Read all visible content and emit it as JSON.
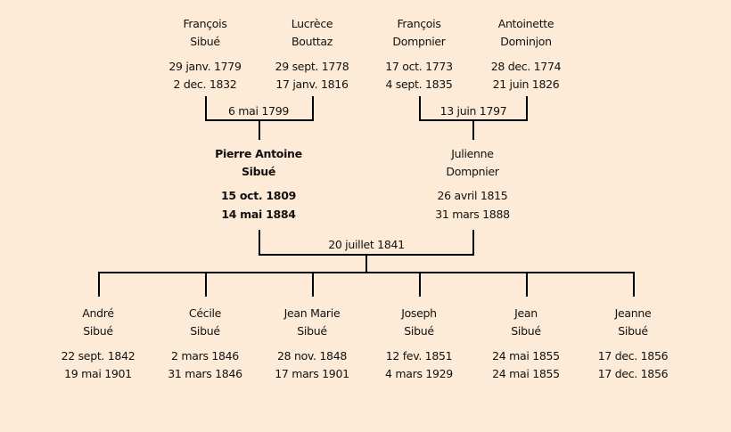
{
  "colors": {
    "background": "#fdebd7",
    "lines": "#000000"
  },
  "grandparents": [
    {
      "first": "François",
      "last": "Sibué",
      "birth": "29 janv. 1779",
      "death": "2 dec. 1832"
    },
    {
      "first": "Lucrèce",
      "last": "Bouttaz",
      "birth": "29 sept. 1778",
      "death": "17 janv. 1816"
    },
    {
      "first": "François",
      "last": "Dompnier",
      "birth": "17 oct. 1773",
      "death": "4 sept. 1835"
    },
    {
      "first": "Antoinette",
      "last": "Dominjon",
      "birth": "28 dec. 1774",
      "death": "21 juin 1826"
    }
  ],
  "grandparent_marriages": [
    "6 mai 1799",
    "13 juin 1797"
  ],
  "parents": [
    {
      "first": "Pierre Antoine",
      "last": "Sibué",
      "birth": "15 oct. 1809",
      "death": "14 mai 1884",
      "highlighted": true
    },
    {
      "first": "Julienne",
      "last": "Dompnier",
      "birth": "26 avril 1815",
      "death": "31 mars 1888",
      "highlighted": false
    }
  ],
  "parent_marriage": "20 juillet 1841",
  "children": [
    {
      "first": "André",
      "last": "Sibué",
      "birth": "22 sept. 1842",
      "death": "19 mai 1901"
    },
    {
      "first": "Cécile",
      "last": "Sibué",
      "birth": "2 mars 1846",
      "death": "31 mars 1846"
    },
    {
      "first": "Jean Marie",
      "last": "Sibué",
      "birth": "28 nov. 1848",
      "death": "17 mars 1901"
    },
    {
      "first": "Joseph",
      "last": "Sibué",
      "birth": "12 fev. 1851",
      "death": "4 mars 1929"
    },
    {
      "first": "Jean",
      "last": "Sibué",
      "birth": "24 mai 1855",
      "death": "24 mai 1855"
    },
    {
      "first": "Jeanne",
      "last": "Sibué",
      "birth": "17 dec. 1856",
      "death": "17 dec. 1856"
    }
  ]
}
